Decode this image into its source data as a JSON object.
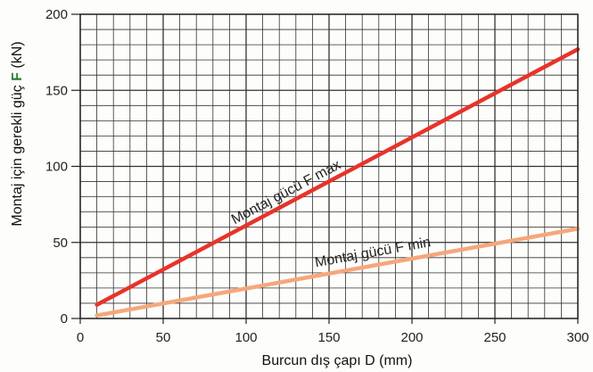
{
  "chart_data": {
    "type": "line",
    "title": "",
    "xlabel": "Burcun dış çapı D (mm)",
    "ylabel_prefix": "Montaj için gerekli güç ",
    "ylabel_symbol": "F",
    "ylabel_suffix": " (kN)",
    "xlim": [
      0,
      300
    ],
    "ylim": [
      0,
      200
    ],
    "x_ticks": [
      0,
      50,
      100,
      150,
      200,
      250,
      300
    ],
    "y_ticks": [
      0,
      50,
      100,
      150,
      200
    ],
    "grid": true,
    "series": [
      {
        "name": "Montaj gücü F max",
        "color": "#e8332a",
        "x": [
          10,
          300
        ],
        "y": [
          9,
          177
        ]
      },
      {
        "name": "Montaj gücü F min",
        "color": "#f5a77c",
        "x": [
          10,
          300
        ],
        "y": [
          2,
          59
        ]
      }
    ],
    "accent_colors": {
      "grid": "#333333",
      "ylabel_symbol": "#2e7d32"
    }
  }
}
